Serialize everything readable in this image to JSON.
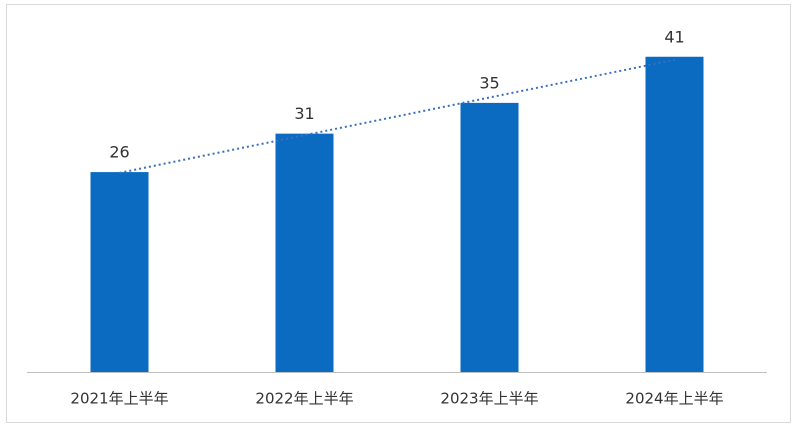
{
  "chart_data": {
    "type": "bar",
    "categories": [
      "2021年上半年",
      "2022年上半年",
      "2023年上半年",
      "2024年上半年"
    ],
    "values": [
      26,
      31,
      35,
      41
    ],
    "color": "#0a6bc1",
    "ylim": [
      0,
      45
    ],
    "trendline": "linear",
    "trendline_color": "#3a6fc0"
  }
}
